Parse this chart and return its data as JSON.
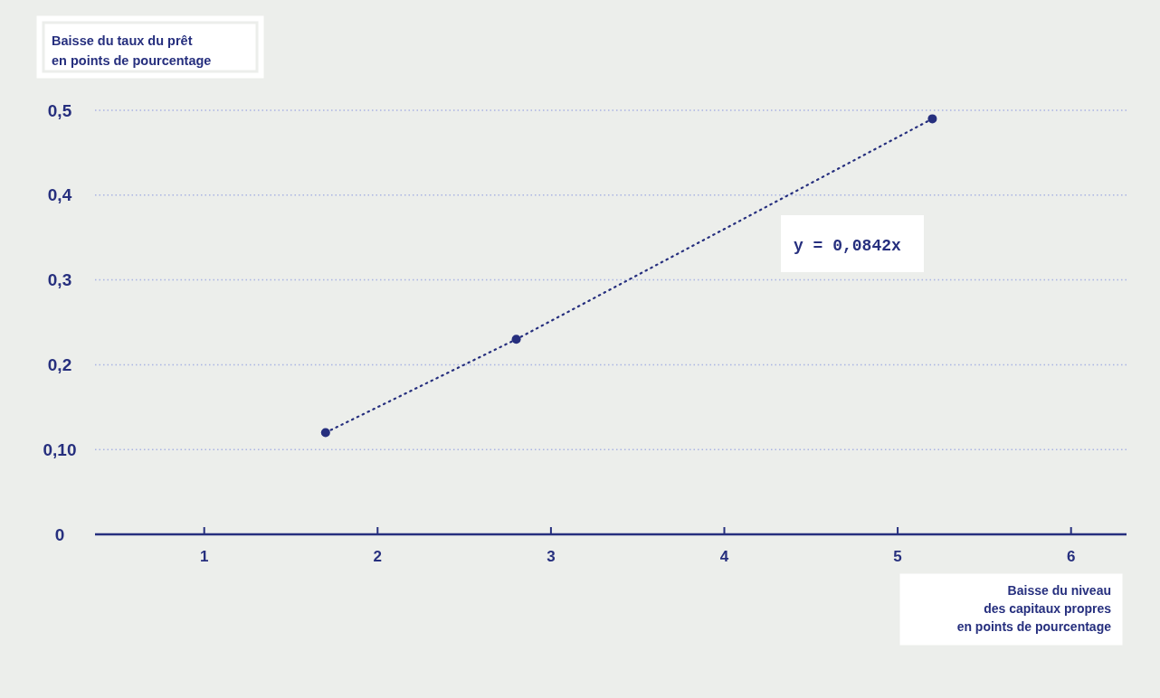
{
  "chart_data": {
    "type": "line",
    "xlabel": "Baisse du niveau\ndes capitaux propres\nen points de pourcentage",
    "ylabel": "Baisse du taux du prêt\nen points de pourcentage",
    "annotations": [
      "y = 0,0842x"
    ],
    "x": [
      1.7,
      2.8,
      5.2
    ],
    "series": [
      {
        "color": "#262f7e",
        "values": [
          0.12,
          0.23,
          0.49
        ]
      }
    ],
    "xlim": [
      0.37,
      6.32
    ],
    "xticks": [
      1,
      2,
      3,
      4,
      5,
      6
    ],
    "ylim": [
      0,
      0.5
    ],
    "yticks": [
      0,
      {
        "value": 0.1,
        "label": "0,10"
      },
      {
        "value": 0.2,
        "label": "0,2"
      },
      {
        "value": 0.3,
        "label": "0,3"
      },
      {
        "value": 0.4,
        "label": "0,4"
      },
      {
        "value": 0.5,
        "label": "0,5"
      }
    ],
    "grid": "y",
    "marker": "circle",
    "line_style": "dotted"
  }
}
